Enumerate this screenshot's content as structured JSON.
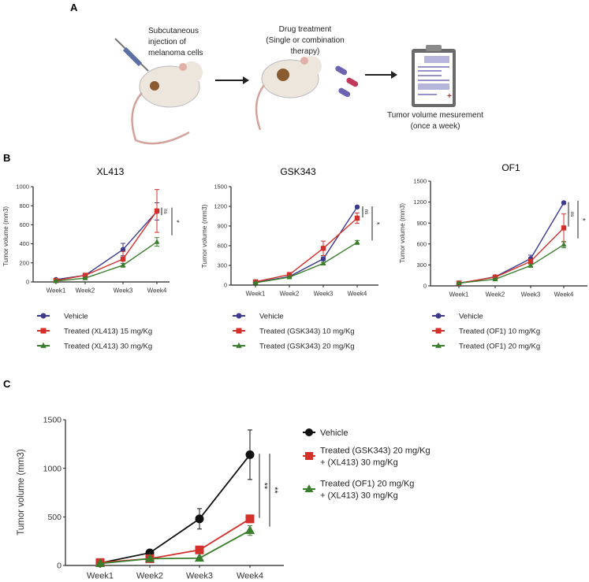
{
  "panel_labels": [
    "A",
    "B",
    "C"
  ],
  "schematic": {
    "step1": [
      "Subcutaneous",
      "injection of",
      "melanoma cells"
    ],
    "step2": [
      "Drug treatment",
      "(Single or combination",
      "therapy)"
    ],
    "step3": [
      "Tumor volume mesurement",
      "(once a week)"
    ]
  },
  "colors": {
    "vehicle": "#3d3a8e",
    "red": "#d3302b",
    "green": "#3a7d2c",
    "black": "#111111"
  },
  "chart_data": [
    {
      "type": "line",
      "title": "XL413",
      "xlabel": "",
      "ylabel": "Tumor volume (mm3)",
      "categories": [
        "Week1",
        "Week2",
        "Week3",
        "Week4"
      ],
      "ylim": [
        0,
        1000
      ],
      "yticks": [
        0,
        200,
        400,
        600,
        800,
        1000
      ],
      "series": [
        {
          "name": "Vehicle",
          "marker": "circle",
          "color": "#3d3a8e",
          "values": [
            25,
            70,
            340,
            740
          ],
          "errors": [
            5,
            10,
            65,
            90
          ]
        },
        {
          "name": "Treated (XL413) 15 mg/Kg",
          "marker": "square",
          "color": "#d3302b",
          "values": [
            15,
            70,
            240,
            745
          ],
          "errors": [
            5,
            10,
            80,
            225
          ]
        },
        {
          "name": "Treated (XL413) 30 mg/Kg",
          "marker": "triangle",
          "color": "#3a7d2c",
          "values": [
            10,
            40,
            175,
            420
          ],
          "errors": [
            3,
            5,
            20,
            45
          ]
        }
      ],
      "annotations": [
        {
          "text": "ns",
          "range": [
            700,
            780
          ]
        },
        {
          "text": "*",
          "range": [
            490,
            780
          ]
        }
      ],
      "legend": "bottom"
    },
    {
      "type": "line",
      "title": "GSK343",
      "xlabel": "",
      "ylabel": "Tumor volume (mm3)",
      "categories": [
        "Week1",
        "Week2",
        "Week3",
        "Week4"
      ],
      "ylim": [
        0,
        1500
      ],
      "yticks": [
        0,
        300,
        600,
        900,
        1200,
        1500
      ],
      "series": [
        {
          "name": "Vehicle",
          "marker": "circle",
          "color": "#3d3a8e",
          "values": [
            40,
            130,
            400,
            1190
          ],
          "errors": [
            5,
            10,
            30,
            15
          ]
        },
        {
          "name": "Treated (GSK343) 10 mg/Kg",
          "marker": "square",
          "color": "#d3302b",
          "values": [
            50,
            160,
            560,
            1020
          ],
          "errors": [
            5,
            20,
            110,
            80
          ]
        },
        {
          "name": "Treated (GSK343) 20 mg/Kg",
          "marker": "triangle",
          "color": "#3a7d2c",
          "values": [
            35,
            120,
            330,
            650
          ],
          "errors": [
            5,
            10,
            15,
            30
          ]
        }
      ],
      "annotations": [
        {
          "text": "ns",
          "range": [
            1030,
            1200
          ]
        },
        {
          "text": "*",
          "range": [
            680,
            1200
          ]
        }
      ],
      "legend": "bottom"
    },
    {
      "type": "line",
      "title": "OF1",
      "xlabel": "",
      "ylabel": "Tumor volume (mm3)",
      "categories": [
        "Week1",
        "Week2",
        "Week3",
        "Week4"
      ],
      "ylim": [
        0,
        1500
      ],
      "yticks": [
        0,
        300,
        600,
        900,
        1200,
        1500
      ],
      "series": [
        {
          "name": "Vehicle",
          "marker": "circle",
          "color": "#3d3a8e",
          "values": [
            35,
            130,
            390,
            1190
          ],
          "errors": [
            5,
            10,
            50,
            15
          ]
        },
        {
          "name": "Treated (OF1) 10 mg/Kg",
          "marker": "square",
          "color": "#d3302b",
          "values": [
            40,
            125,
            350,
            830
          ],
          "errors": [
            5,
            10,
            30,
            200
          ]
        },
        {
          "name": "Treated (OF1) 20 mg/Kg",
          "marker": "triangle",
          "color": "#3a7d2c",
          "values": [
            40,
            95,
            290,
            590
          ],
          "errors": [
            5,
            10,
            15,
            45
          ]
        }
      ],
      "annotations": [
        {
          "text": "ns",
          "range": [
            850,
            1200
          ]
        },
        {
          "text": "*",
          "range": [
            680,
            1220
          ]
        }
      ],
      "legend": "bottom"
    },
    {
      "type": "line",
      "title": "",
      "xlabel": "",
      "ylabel": "Tumor volume (mm3)",
      "categories": [
        "Week1",
        "Week2",
        "Week3",
        "Week4"
      ],
      "ylim": [
        0,
        1500
      ],
      "yticks": [
        0,
        500,
        1000,
        1500
      ],
      "series": [
        {
          "name": "Vehicle",
          "marker": "circle",
          "color": "#111111",
          "values": [
            25,
            130,
            480,
            1140
          ],
          "errors": [
            5,
            10,
            105,
            255
          ]
        },
        {
          "name": "Treated (GSK343) 20 mg/Kg\n+ (XL413) 30 mg/Kg",
          "marker": "square",
          "color": "#d3302b",
          "values": [
            30,
            70,
            160,
            480
          ],
          "errors": [
            5,
            10,
            15,
            40
          ]
        },
        {
          "name": "Treated (OF1) 20 mg/Kg\n+ (XL413) 30 mg/Kg",
          "marker": "triangle",
          "color": "#3a7d2c",
          "values": [
            20,
            70,
            75,
            360
          ],
          "errors": [
            3,
            5,
            10,
            50
          ]
        }
      ],
      "annotations": [
        {
          "text": "**",
          "range": [
            490,
            1150
          ]
        },
        {
          "text": "**",
          "range": [
            400,
            1150
          ]
        }
      ],
      "legend": "right"
    }
  ]
}
